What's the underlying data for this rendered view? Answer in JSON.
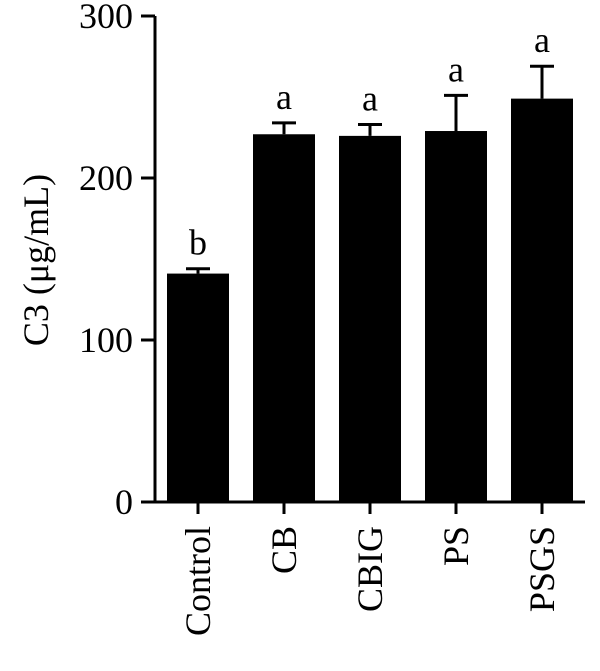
{
  "chart_data": {
    "type": "bar",
    "categories": [
      "Control",
      "CB",
      "CBIG",
      "PS",
      "PSGS"
    ],
    "values": [
      141,
      227,
      226,
      229,
      249
    ],
    "errors": [
      3,
      7,
      7,
      22,
      20
    ],
    "significance": [
      "b",
      "a",
      "a",
      "a",
      "a"
    ],
    "ylabel": "C3 (μg/mL)",
    "xlabel": "",
    "title": "",
    "ylim": [
      0,
      300
    ],
    "yticks": [
      0,
      100,
      200,
      300
    ],
    "bar_color": "#000000"
  }
}
